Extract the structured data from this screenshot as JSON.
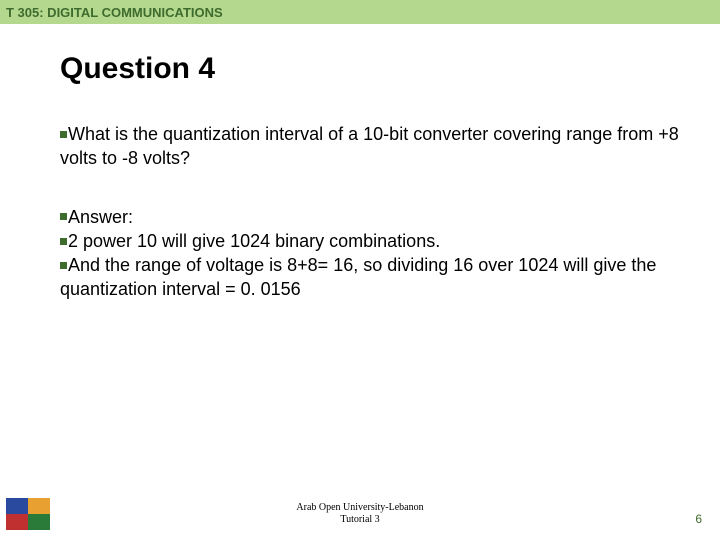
{
  "header": {
    "title": "T 305: DIGITAL COMMUNICATIONS",
    "bg_color": "#b4d98e",
    "text_color": "#3e6b2e"
  },
  "slide": {
    "title": "Question 4",
    "question": "What is the quantization interval of a 10-bit converter covering range from +8 volts to -8 volts?",
    "answer_label": "Answer:",
    "answer_line1": "2 power 10 will give 1024 binary combinations.",
    "answer_line2": "And the range of voltage is 8+8= 16, so dividing 16 over 1024 will give the quantization interval = 0. 0156"
  },
  "footer": {
    "line1": "Arab Open University-Lebanon",
    "line2": "Tutorial 3"
  },
  "slide_number": "6",
  "colors": {
    "bullet": "#3e6b2e",
    "slide_num": "#3e6b2e",
    "text": "#000000",
    "background": "#ffffff"
  },
  "logo_colors": [
    "#2a4aa0",
    "#e8a030",
    "#c03030",
    "#2a7a3a"
  ]
}
